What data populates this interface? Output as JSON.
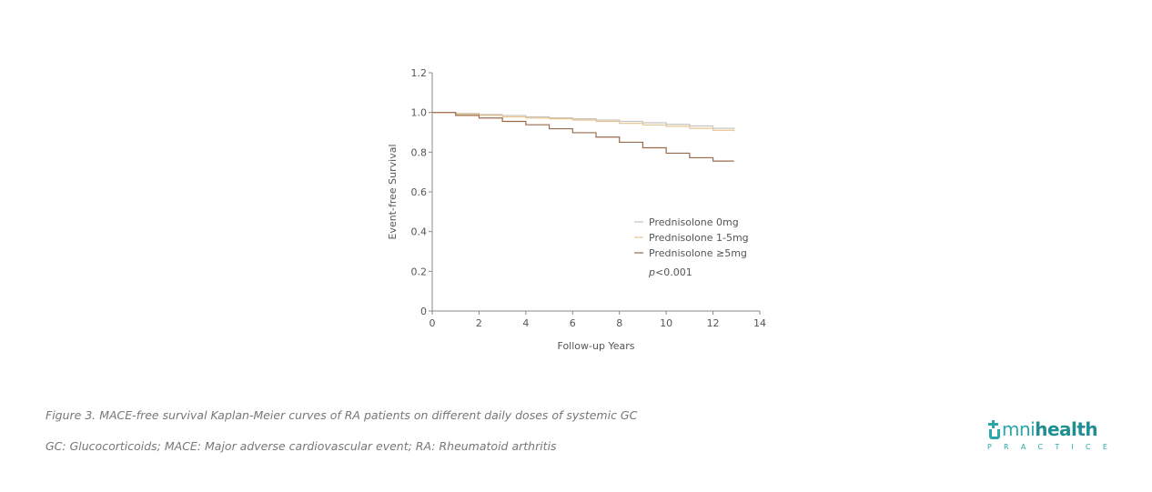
{
  "chart_data": {
    "type": "line",
    "step": true,
    "xlabel": "Follow-up Years",
    "ylabel": "Event-free Survival",
    "xlim": [
      0,
      14
    ],
    "ylim": [
      0,
      1.2
    ],
    "x_ticks": [
      0,
      2,
      4,
      6,
      8,
      10,
      12,
      14
    ],
    "y_ticks": [
      0,
      0.2,
      0.4,
      0.6,
      0.8,
      1.0,
      1.2
    ],
    "y_tick_labels": [
      "0",
      "0.2",
      "0.4",
      "0.6",
      "0.8",
      "1.0",
      "1.2"
    ],
    "grid": false,
    "legend_position": "lower-right",
    "annotation": {
      "prefix": "p",
      "text": "<0.001"
    },
    "series": [
      {
        "name": "Prednisolone 0mg",
        "color": "#c8c3bc",
        "x": [
          0,
          1,
          2,
          3,
          4,
          5,
          6,
          7,
          8,
          9,
          10,
          11,
          12,
          12.9
        ],
        "y": [
          1.0,
          0.995,
          0.99,
          0.985,
          0.978,
          0.973,
          0.968,
          0.962,
          0.955,
          0.948,
          0.94,
          0.932,
          0.92,
          0.915
        ]
      },
      {
        "name": "Prednisolone 1-5mg",
        "color": "#e7c38e",
        "x": [
          0,
          1,
          2,
          3,
          4,
          5,
          6,
          7,
          8,
          9,
          10,
          11,
          12,
          12.9
        ],
        "y": [
          1.0,
          0.99,
          0.985,
          0.978,
          0.972,
          0.968,
          0.962,
          0.955,
          0.945,
          0.937,
          0.93,
          0.92,
          0.91,
          0.905
        ]
      },
      {
        "name": "Prednisolone ≥5mg",
        "color": "#9a6a4c",
        "x": [
          0,
          1,
          2,
          3,
          4,
          5,
          6,
          7,
          8,
          9,
          10,
          11,
          12,
          12.9
        ],
        "y": [
          1.0,
          0.985,
          0.972,
          0.955,
          0.938,
          0.918,
          0.898,
          0.876,
          0.85,
          0.822,
          0.795,
          0.772,
          0.755,
          0.755
        ]
      }
    ]
  },
  "captions": {
    "figure": "Figure 3. MACE-free survival Kaplan-Meier curves of RA patients on different daily doses of systemic GC",
    "abbreviations": "GC: Glucocorticoids; MACE: Major adverse cardiovascular event; RA: Rheumatoid arthritis"
  },
  "logo": {
    "word_a": "mni",
    "word_b": "health",
    "tagline_letters": [
      "P",
      "R",
      "A",
      "C",
      "T",
      "I",
      "C",
      "E"
    ],
    "color": "#2aa7a8"
  }
}
